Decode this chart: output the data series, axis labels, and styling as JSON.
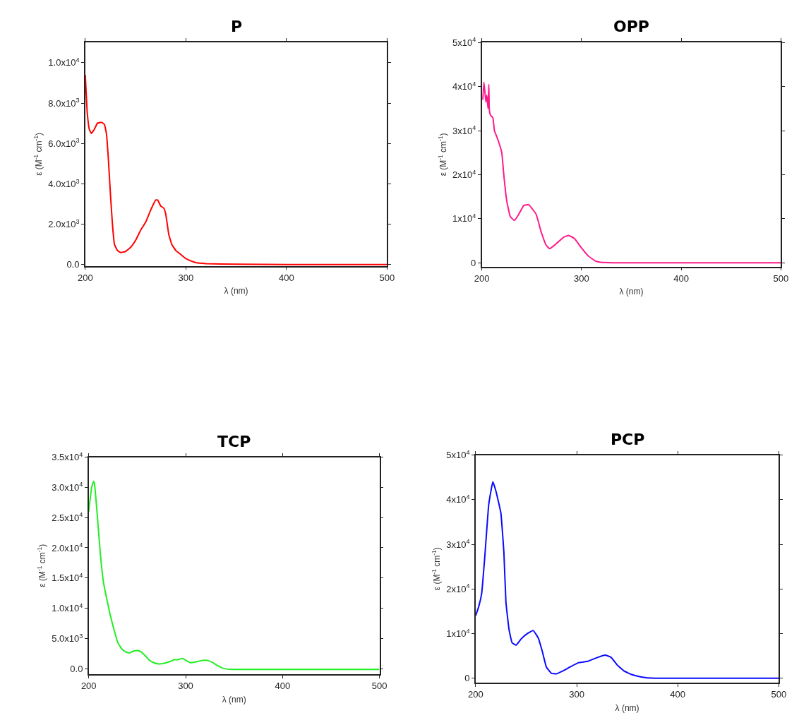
{
  "chart_data": [
    {
      "type": "line",
      "title": "P",
      "xlabel": "λ (nm)",
      "ylabel": "ε (M$^{-1}$ cm$^{-1}$)",
      "xlim": [
        200,
        500
      ],
      "xticks": [
        200,
        300,
        400,
        500
      ],
      "ylim": [
        -60,
        11000
      ],
      "yticks": [
        {
          "value": 0,
          "label": "0.0"
        },
        {
          "value": 2000,
          "label": "2.0x10$^{3}$"
        },
        {
          "value": 4000,
          "label": "4.0x10$^{3}$"
        },
        {
          "value": 6000,
          "label": "6.0x10$^{3}$"
        },
        {
          "value": 8000,
          "label": "8.0x10$^{3}$"
        },
        {
          "value": 10000,
          "label": "1.0x10$^{4}$"
        }
      ],
      "series": [
        {
          "color": "#ff0000",
          "x": [
            200,
            202,
            204,
            206,
            209,
            212,
            216,
            219,
            221,
            223,
            225,
            227,
            229,
            232,
            235,
            240,
            245,
            250,
            255,
            260,
            265,
            270,
            272,
            275,
            278,
            280,
            283,
            286,
            290,
            295,
            300,
            305,
            310,
            320,
            350,
            400,
            500
          ],
          "values": [
            9400,
            7500,
            6700,
            6500,
            6700,
            7000,
            7050,
            6950,
            6500,
            5200,
            3500,
            2000,
            1000,
            700,
            600,
            650,
            850,
            1200,
            1700,
            2100,
            2700,
            3200,
            3200,
            2900,
            2800,
            2500,
            1500,
            1000,
            700,
            500,
            300,
            180,
            100,
            50,
            20,
            0,
            0
          ]
        }
      ]
    },
    {
      "type": "line",
      "title": "OPP",
      "xlabel": "λ (nm)",
      "ylabel": "ε (M$^{-1}$ cm$^{-1}$)",
      "xlim": [
        200,
        500
      ],
      "xticks": [
        200,
        300,
        400,
        500
      ],
      "ylim": [
        -850,
        50000
      ],
      "yticks": [
        0,
        {
          "value": 10000,
          "label": "1x10$^{4}$"
        },
        {
          "value": 20000,
          "label": "2x10$^{4}$"
        },
        {
          "value": 30000,
          "label": "3x10$^{4}$"
        },
        {
          "value": 40000,
          "label": "4x10$^{4}$"
        },
        {
          "value": 50000,
          "label": "5x10$^{4}$"
        }
      ],
      "series": [
        {
          "color": "#ff1a8c",
          "x": [
            201,
            202,
            203,
            204,
            205,
            206.2,
            207,
            207.4,
            208,
            208.7,
            211,
            212.6,
            216,
            220,
            222,
            225,
            228.5,
            232.7,
            237,
            242,
            247,
            254.5,
            259.5,
            264.5,
            268,
            274,
            282,
            287,
            293,
            299.5,
            307,
            314,
            319,
            331,
            400,
            500
          ],
          "values": [
            37000,
            41000,
            39000,
            36500,
            38000,
            35000,
            40500,
            35000,
            34000,
            33500,
            33000,
            30000,
            28000,
            25000,
            20000,
            14000,
            10500,
            9600,
            11000,
            13000,
            13200,
            11000,
            7000,
            4000,
            3200,
            4200,
            5800,
            6200,
            5500,
            3500,
            1500,
            400,
            100,
            0,
            0,
            0
          ]
        }
      ]
    },
    {
      "type": "line",
      "title": "TCP",
      "xlabel": "λ (nm)",
      "ylabel": "ε (M$^{-1}$ cm$^{-1}$)",
      "xlim": [
        200,
        500
      ],
      "xticks": [
        200,
        300,
        400,
        500
      ],
      "ylim": [
        -900,
        35000
      ],
      "yticks": [
        {
          "value": 0,
          "label": "0.0"
        },
        {
          "value": 5000,
          "label": "5.0x10$^{3}$"
        },
        {
          "value": 10000,
          "label": "1.0x10$^{4}$"
        },
        {
          "value": 15000,
          "label": "1.5x10$^{4}$"
        },
        {
          "value": 20000,
          "label": "2.0x10$^{4}$"
        },
        {
          "value": 25000,
          "label": "2.5x10$^{4}$"
        },
        {
          "value": 30000,
          "label": "3.0x10$^{4}$"
        },
        {
          "value": 35000,
          "label": "3.5x10$^{4}$"
        }
      ],
      "series": [
        {
          "color": "#22ee22",
          "x": [
            200,
            203,
            205,
            206,
            208,
            210,
            212,
            215,
            218,
            222,
            226,
            230,
            234,
            238,
            242,
            246,
            250,
            254,
            258,
            262,
            267,
            272,
            278,
            284,
            288,
            292,
            297,
            301,
            305,
            310,
            315,
            320,
            324,
            328,
            333,
            338,
            345,
            360,
            500
          ],
          "values": [
            26000,
            30000,
            31000,
            30500,
            27000,
            23000,
            19000,
            14500,
            12000,
            9000,
            6500,
            4300,
            3300,
            2800,
            2600,
            2900,
            3000,
            2800,
            2200,
            1500,
            1000,
            800,
            900,
            1200,
            1500,
            1500,
            1700,
            1300,
            1000,
            1100,
            1300,
            1400,
            1300,
            1000,
            500,
            100,
            -100,
            -100,
            -100
          ]
        }
      ]
    },
    {
      "type": "line",
      "title": "PCP",
      "xlabel": "λ (nm)",
      "ylabel": "ε (M$^{-1}$ cm$^{-1}$)",
      "xlim": [
        200,
        500
      ],
      "xticks": [
        200,
        300,
        400,
        500
      ],
      "ylim": [
        -950,
        50000
      ],
      "yticks": [
        0,
        {
          "value": 10000,
          "label": "1x10$^{4}$"
        },
        {
          "value": 20000,
          "label": "2x10$^{4}$"
        },
        {
          "value": 30000,
          "label": "3x10$^{4}$"
        },
        {
          "value": 40000,
          "label": "4x10$^{4}$"
        },
        {
          "value": 50000,
          "label": "5x10$^{4}$"
        }
      ],
      "series": [
        {
          "color": "#0a0aff",
          "x": [
            200,
            203,
            206,
            209,
            213,
            217,
            220,
            225,
            228,
            230,
            233,
            236,
            240,
            245,
            251,
            257,
            262,
            266,
            270,
            275,
            280,
            286,
            294,
            302,
            311,
            321,
            328,
            334,
            340,
            347,
            355,
            364,
            377,
            400,
            500
          ],
          "values": [
            14000,
            16000,
            19000,
            27000,
            39000,
            44000,
            42000,
            37000,
            28000,
            17000,
            11000,
            8000,
            7400,
            8800,
            10000,
            10700,
            9000,
            6000,
            2500,
            1100,
            1000,
            1600,
            2600,
            3500,
            3800,
            4700,
            5200,
            4700,
            3000,
            1600,
            800,
            300,
            0,
            0,
            0
          ]
        }
      ]
    }
  ]
}
